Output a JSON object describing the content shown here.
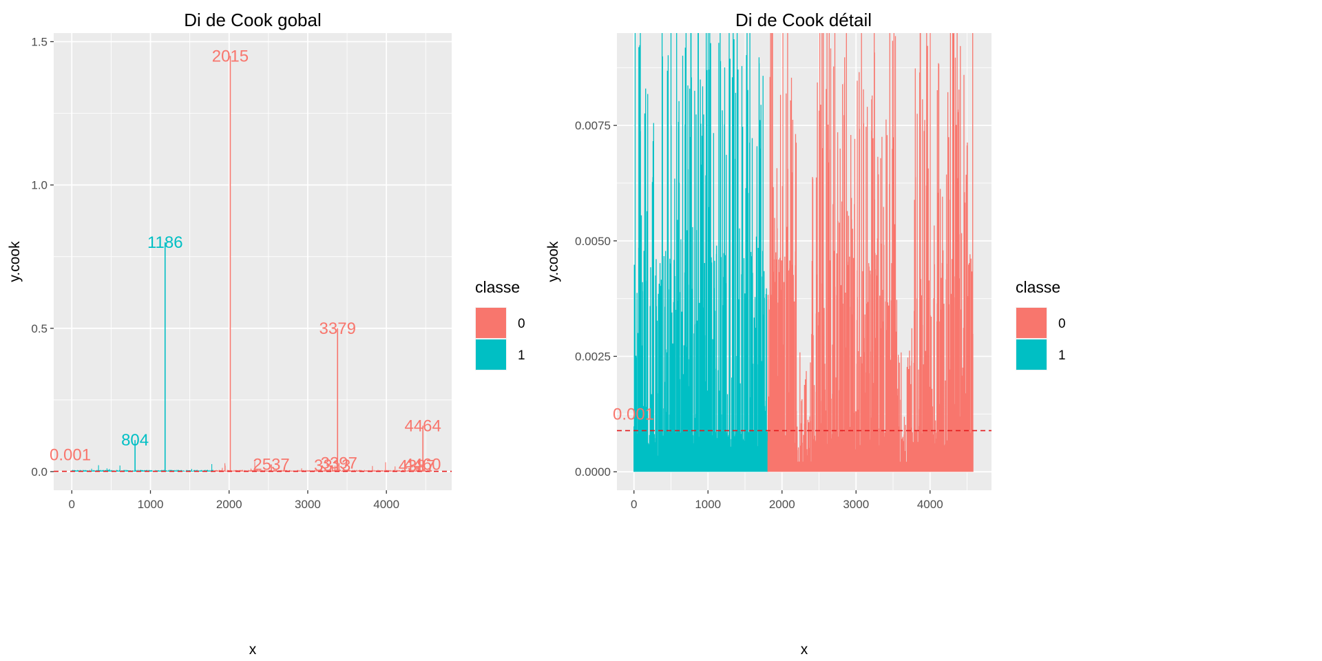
{
  "chart_data": [
    {
      "type": "line",
      "title": "Di de Cook gobal",
      "xlabel": "x",
      "ylabel": "y.cook",
      "xlim": [
        -230,
        4830
      ],
      "ylim": [
        -0.065,
        1.53
      ],
      "grid": true,
      "xticks": [
        {
          "v": 0,
          "label": "0"
        },
        {
          "v": 1000,
          "label": "1000"
        },
        {
          "v": 2000,
          "label": "2000"
        },
        {
          "v": 3000,
          "label": "3000"
        },
        {
          "v": 4000,
          "label": "4000"
        }
      ],
      "yticks": [
        {
          "v": 0,
          "label": "0.0"
        },
        {
          "v": 0.5,
          "label": "0.5"
        },
        {
          "v": 1.0,
          "label": "1.0"
        },
        {
          "v": 1.5,
          "label": "1.5"
        }
      ],
      "threshold": {
        "value": 0.00089,
        "label": "0.001",
        "color": "#f8766d"
      },
      "series": [
        {
          "name": "0",
          "color": "#f8766d",
          "x_range": [
            1810,
            4580
          ]
        },
        {
          "name": "1",
          "color": "#00bfc4",
          "x_range": [
            0,
            1810
          ]
        }
      ],
      "spikes": [
        {
          "x": 804,
          "y": 0.11,
          "classe": "1",
          "label": "804"
        },
        {
          "x": 1186,
          "y": 0.8,
          "classe": "1",
          "label": "1186"
        },
        {
          "x": 2015,
          "y": 1.45,
          "classe": "0",
          "label": "2015"
        },
        {
          "x": 2537,
          "y": 0.025,
          "classe": "0",
          "label": "2537"
        },
        {
          "x": 3313,
          "y": 0.022,
          "classe": "0",
          "label": "3313"
        },
        {
          "x": 3379,
          "y": 0.5,
          "classe": "0",
          "label": "3379"
        },
        {
          "x": 3397,
          "y": 0.03,
          "classe": "0",
          "label": "3397"
        },
        {
          "x": 4387,
          "y": 0.02,
          "classe": "0",
          "label": "4387"
        },
        {
          "x": 4460,
          "y": 0.025,
          "classe": "0",
          "label": "4460"
        },
        {
          "x": 4464,
          "y": 0.16,
          "classe": "0",
          "label": "4464"
        }
      ]
    },
    {
      "type": "line",
      "title": "Di de Cook détail",
      "xlabel": "x",
      "ylabel": "y.cook",
      "xlim": [
        -230,
        4830
      ],
      "ylim": [
        -0.0004,
        0.0095
      ],
      "grid": true,
      "xticks": [
        {
          "v": 0,
          "label": "0"
        },
        {
          "v": 1000,
          "label": "1000"
        },
        {
          "v": 2000,
          "label": "2000"
        },
        {
          "v": 3000,
          "label": "3000"
        },
        {
          "v": 4000,
          "label": "4000"
        }
      ],
      "yticks": [
        {
          "v": 0,
          "label": "0.0000"
        },
        {
          "v": 0.0025,
          "label": "0.0025"
        },
        {
          "v": 0.005,
          "label": "0.0050"
        },
        {
          "v": 0.0075,
          "label": "0.0075"
        }
      ],
      "threshold": {
        "value": 0.00089,
        "label": "0.001",
        "color": "#f8766d"
      },
      "series": [
        {
          "name": "0",
          "color": "#f8766d",
          "x_range": [
            1810,
            4580
          ]
        },
        {
          "name": "1",
          "color": "#00bfc4",
          "x_range": [
            0,
            1810
          ]
        }
      ]
    }
  ],
  "legend": {
    "title": "classe",
    "items": [
      {
        "label": "0",
        "color": "#f8766d"
      },
      {
        "label": "1",
        "color": "#00bfc4"
      }
    ]
  }
}
